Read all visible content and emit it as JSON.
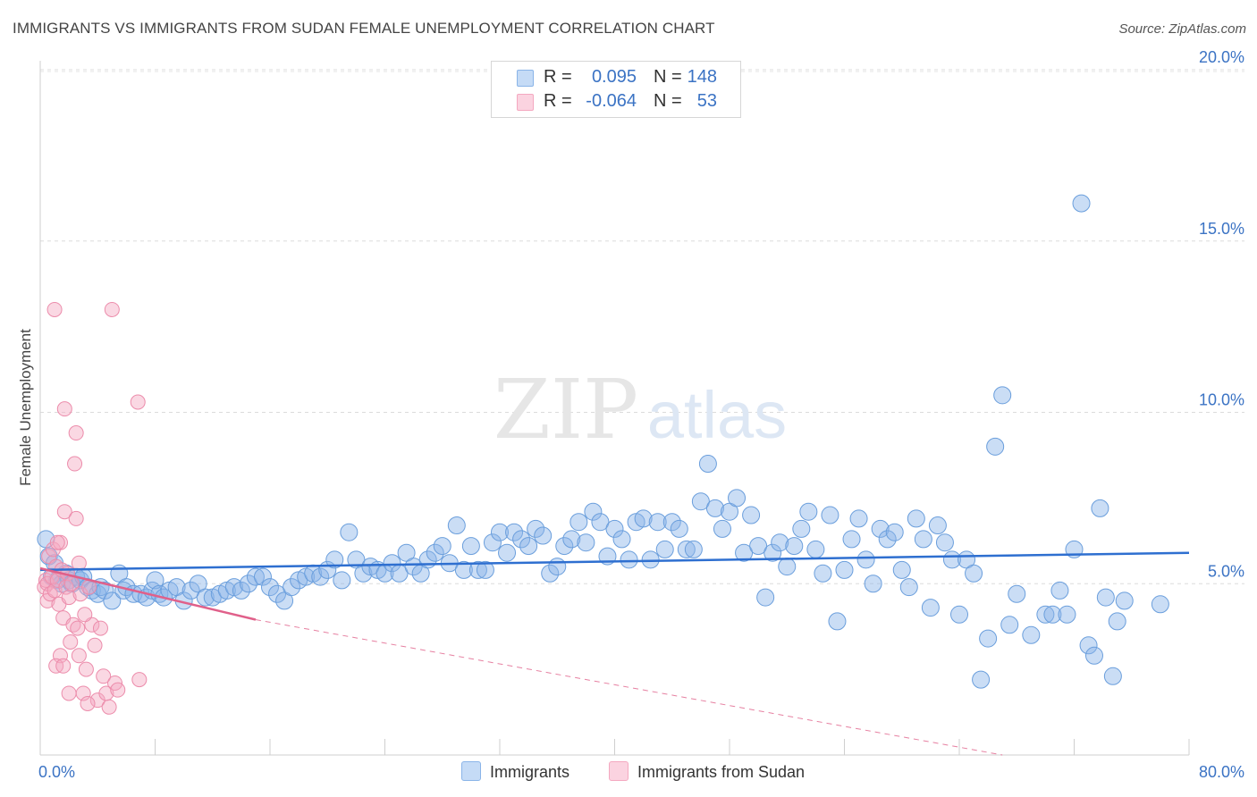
{
  "title": "IMMIGRANTS VS IMMIGRANTS FROM SUDAN FEMALE UNEMPLOYMENT CORRELATION CHART",
  "source": "Source: ZipAtlas.com",
  "watermark": {
    "zip": "ZIP",
    "atlas": "atlas"
  },
  "legend": {
    "r_label": "R =",
    "n_label": "N =",
    "rows": [
      {
        "r": "0.095",
        "n": "148"
      },
      {
        "r": "-0.064",
        "n": "53"
      }
    ]
  },
  "chart_data": {
    "type": "scatter",
    "xlabel": "",
    "ylabel": "Female Unemployment",
    "xlim": [
      0,
      80
    ],
    "ylim": [
      0,
      20
    ],
    "x_tick_labels": [
      "0.0%",
      "80.0%"
    ],
    "y_ticks": [
      {
        "value": 5,
        "label": "5.0%"
      },
      {
        "value": 10,
        "label": "10.0%"
      },
      {
        "value": 15,
        "label": "15.0%"
      },
      {
        "value": 20,
        "label": "20.0%"
      }
    ],
    "grid": "horizontal dashed",
    "legend_position": "top-center",
    "series": [
      {
        "name": "Immigrants",
        "color": "#8ab4e8",
        "line_color": "#2e6fd0",
        "trend": {
          "x": [
            0,
            80
          ],
          "y": [
            5.4,
            5.9
          ]
        },
        "points": [
          [
            0.4,
            6.3
          ],
          [
            0.6,
            5.8
          ],
          [
            0.8,
            5.2
          ],
          [
            1.0,
            5.6
          ],
          [
            1.2,
            5.1
          ],
          [
            1.5,
            5.0
          ],
          [
            1.8,
            5.3
          ],
          [
            2.0,
            5.1
          ],
          [
            2.2,
            5.0
          ],
          [
            2.5,
            5.2
          ],
          [
            2.8,
            5.1
          ],
          [
            3.0,
            5.2
          ],
          [
            3.3,
            4.9
          ],
          [
            3.6,
            4.8
          ],
          [
            4.0,
            4.7
          ],
          [
            4.2,
            4.9
          ],
          [
            4.5,
            4.8
          ],
          [
            5.0,
            4.5
          ],
          [
            5.5,
            5.3
          ],
          [
            5.8,
            4.8
          ],
          [
            6.0,
            4.9
          ],
          [
            6.5,
            4.7
          ],
          [
            7.0,
            4.7
          ],
          [
            7.4,
            4.6
          ],
          [
            7.8,
            4.8
          ],
          [
            8.0,
            5.1
          ],
          [
            8.3,
            4.7
          ],
          [
            8.6,
            4.6
          ],
          [
            9.0,
            4.8
          ],
          [
            9.5,
            4.9
          ],
          [
            10.0,
            4.5
          ],
          [
            10.5,
            4.8
          ],
          [
            11.0,
            5.0
          ],
          [
            11.5,
            4.6
          ],
          [
            12.0,
            4.6
          ],
          [
            12.5,
            4.7
          ],
          [
            13.0,
            4.8
          ],
          [
            13.5,
            4.9
          ],
          [
            14.0,
            4.8
          ],
          [
            14.5,
            5.0
          ],
          [
            15.0,
            5.2
          ],
          [
            15.5,
            5.2
          ],
          [
            16.0,
            4.9
          ],
          [
            16.5,
            4.7
          ],
          [
            17.0,
            4.5
          ],
          [
            17.5,
            4.9
          ],
          [
            18.0,
            5.1
          ],
          [
            18.5,
            5.2
          ],
          [
            19.0,
            5.3
          ],
          [
            19.5,
            5.2
          ],
          [
            20.0,
            5.4
          ],
          [
            20.5,
            5.7
          ],
          [
            21.0,
            5.1
          ],
          [
            21.5,
            6.5
          ],
          [
            22.0,
            5.7
          ],
          [
            22.5,
            5.3
          ],
          [
            23.0,
            5.5
          ],
          [
            23.5,
            5.4
          ],
          [
            24.0,
            5.3
          ],
          [
            24.5,
            5.6
          ],
          [
            25.0,
            5.3
          ],
          [
            25.5,
            5.9
          ],
          [
            26.0,
            5.5
          ],
          [
            26.5,
            5.3
          ],
          [
            27.0,
            5.7
          ],
          [
            27.5,
            5.9
          ],
          [
            28.0,
            6.1
          ],
          [
            28.5,
            5.6
          ],
          [
            29.0,
            6.7
          ],
          [
            29.5,
            5.4
          ],
          [
            30.0,
            6.1
          ],
          [
            30.5,
            5.4
          ],
          [
            31.0,
            5.4
          ],
          [
            31.5,
            6.2
          ],
          [
            32.0,
            6.5
          ],
          [
            32.5,
            5.9
          ],
          [
            33.0,
            6.5
          ],
          [
            33.5,
            6.3
          ],
          [
            34.0,
            6.1
          ],
          [
            34.5,
            6.6
          ],
          [
            35.0,
            6.4
          ],
          [
            35.5,
            5.3
          ],
          [
            36.0,
            5.5
          ],
          [
            36.5,
            6.1
          ],
          [
            37.0,
            6.3
          ],
          [
            37.5,
            6.8
          ],
          [
            38.0,
            6.2
          ],
          [
            38.5,
            7.1
          ],
          [
            39.0,
            6.8
          ],
          [
            39.5,
            5.8
          ],
          [
            40.0,
            6.6
          ],
          [
            40.5,
            6.3
          ],
          [
            41.0,
            5.7
          ],
          [
            41.5,
            6.8
          ],
          [
            42.0,
            6.9
          ],
          [
            42.5,
            5.7
          ],
          [
            43.0,
            6.8
          ],
          [
            43.5,
            6.0
          ],
          [
            44.0,
            6.8
          ],
          [
            44.5,
            6.6
          ],
          [
            45.0,
            6.0
          ],
          [
            45.5,
            6.0
          ],
          [
            46.0,
            7.4
          ],
          [
            46.5,
            8.5
          ],
          [
            47.0,
            7.2
          ],
          [
            47.5,
            6.6
          ],
          [
            48.0,
            7.1
          ],
          [
            48.5,
            7.5
          ],
          [
            49.0,
            5.9
          ],
          [
            49.5,
            7.0
          ],
          [
            50.0,
            6.1
          ],
          [
            50.5,
            4.6
          ],
          [
            51.0,
            5.9
          ],
          [
            51.5,
            6.2
          ],
          [
            52.0,
            5.5
          ],
          [
            52.5,
            6.1
          ],
          [
            53.0,
            6.6
          ],
          [
            53.5,
            7.1
          ],
          [
            54.0,
            6.0
          ],
          [
            54.5,
            5.3
          ],
          [
            55.0,
            7.0
          ],
          [
            55.5,
            3.9
          ],
          [
            56.0,
            5.4
          ],
          [
            56.5,
            6.3
          ],
          [
            57.0,
            6.9
          ],
          [
            57.5,
            5.7
          ],
          [
            58.0,
            5.0
          ],
          [
            58.5,
            6.6
          ],
          [
            59.0,
            6.3
          ],
          [
            59.5,
            6.5
          ],
          [
            60.0,
            5.4
          ],
          [
            60.5,
            4.9
          ],
          [
            61.0,
            6.9
          ],
          [
            61.5,
            6.3
          ],
          [
            62.0,
            4.3
          ],
          [
            62.5,
            6.7
          ],
          [
            63.0,
            6.2
          ],
          [
            63.5,
            5.7
          ],
          [
            64.0,
            4.1
          ],
          [
            64.5,
            5.7
          ],
          [
            65.0,
            5.3
          ],
          [
            65.5,
            2.2
          ],
          [
            66.0,
            3.4
          ],
          [
            66.5,
            9.0
          ],
          [
            67.0,
            10.5
          ],
          [
            67.5,
            3.8
          ],
          [
            68.0,
            4.7
          ],
          [
            69.0,
            3.5
          ],
          [
            70.0,
            4.1
          ],
          [
            70.5,
            4.1
          ],
          [
            71.0,
            4.8
          ],
          [
            71.5,
            4.1
          ],
          [
            72.0,
            6.0
          ],
          [
            72.5,
            16.1
          ],
          [
            73.0,
            3.2
          ],
          [
            73.4,
            2.9
          ],
          [
            73.8,
            7.2
          ],
          [
            74.2,
            4.6
          ],
          [
            74.7,
            2.3
          ],
          [
            75.0,
            3.9
          ],
          [
            75.5,
            4.5
          ],
          [
            78.0,
            4.4
          ]
        ]
      },
      {
        "name": "Immigrants from Sudan",
        "color": "#f4a8c0",
        "line_color": "#e0608a",
        "trend": {
          "x": [
            0,
            15
          ],
          "y": [
            5.45,
            3.95
          ]
        },
        "trend_extended": {
          "x": [
            15,
            67
          ],
          "y": [
            3.95,
            0.0
          ]
        },
        "points": [
          [
            0.3,
            4.9
          ],
          [
            0.4,
            5.1
          ],
          [
            0.5,
            5.0
          ],
          [
            0.5,
            4.5
          ],
          [
            0.6,
            5.8
          ],
          [
            0.7,
            4.7
          ],
          [
            0.8,
            5.2
          ],
          [
            0.9,
            6.0
          ],
          [
            1.0,
            4.8
          ],
          [
            1.0,
            13.0
          ],
          [
            1.1,
            5.5
          ],
          [
            1.2,
            5.1
          ],
          [
            1.3,
            4.4
          ],
          [
            1.4,
            6.2
          ],
          [
            1.5,
            5.4
          ],
          [
            1.6,
            4.0
          ],
          [
            1.7,
            10.1
          ],
          [
            1.7,
            7.1
          ],
          [
            1.8,
            4.9
          ],
          [
            1.9,
            5.3
          ],
          [
            2.0,
            4.6
          ],
          [
            2.1,
            3.3
          ],
          [
            2.2,
            5.0
          ],
          [
            2.3,
            3.8
          ],
          [
            2.4,
            8.5
          ],
          [
            2.5,
            6.9
          ],
          [
            2.5,
            9.4
          ],
          [
            2.6,
            3.7
          ],
          [
            2.7,
            2.9
          ],
          [
            2.8,
            4.7
          ],
          [
            3.0,
            1.8
          ],
          [
            3.2,
            2.5
          ],
          [
            3.4,
            4.9
          ],
          [
            3.6,
            3.8
          ],
          [
            3.8,
            3.2
          ],
          [
            4.0,
            1.6
          ],
          [
            4.2,
            3.7
          ],
          [
            4.4,
            2.3
          ],
          [
            4.6,
            1.8
          ],
          [
            4.8,
            1.4
          ],
          [
            5.0,
            13.0
          ],
          [
            5.2,
            2.1
          ],
          [
            5.4,
            1.9
          ],
          [
            1.4,
            2.9
          ],
          [
            1.1,
            2.6
          ],
          [
            1.6,
            2.6
          ],
          [
            2.0,
            1.8
          ],
          [
            2.7,
            5.6
          ],
          [
            1.2,
            6.2
          ],
          [
            3.1,
            4.1
          ],
          [
            3.3,
            1.5
          ],
          [
            6.8,
            10.3
          ],
          [
            6.9,
            2.2
          ]
        ]
      }
    ]
  },
  "bottom_legend": [
    {
      "label": "Immigrants",
      "color": "#8ab4e8"
    },
    {
      "label": "Immigrants from Sudan",
      "color": "#f4a8c0"
    }
  ]
}
